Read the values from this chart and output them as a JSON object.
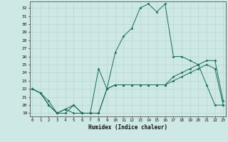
{
  "xlabel": "Humidex (Indice chaleur)",
  "background_color": "#cde8e5",
  "grid_color": "#b8d8d5",
  "line_color": "#1a6b5a",
  "x_ticks": [
    0,
    1,
    2,
    3,
    4,
    5,
    6,
    7,
    8,
    9,
    10,
    11,
    12,
    13,
    14,
    15,
    16,
    17,
    18,
    19,
    20,
    21,
    22,
    23
  ],
  "y_ticks": [
    19,
    20,
    21,
    22,
    23,
    24,
    25,
    26,
    27,
    28,
    29,
    30,
    31,
    32
  ],
  "ylim": [
    18.6,
    32.8
  ],
  "xlim": [
    -0.3,
    23.3
  ],
  "series1_x": [
    0,
    1,
    2,
    3,
    4,
    5,
    6,
    7,
    8,
    9,
    10,
    11,
    12,
    13,
    14,
    15,
    16,
    17,
    18,
    19,
    20,
    21,
    22,
    23
  ],
  "series1_y": [
    22.0,
    21.5,
    20.0,
    19.0,
    19.0,
    20.0,
    19.0,
    19.0,
    19.0,
    22.0,
    22.5,
    22.5,
    22.5,
    22.5,
    22.5,
    22.5,
    22.5,
    23.0,
    23.5,
    24.0,
    24.5,
    25.0,
    24.5,
    20.0
  ],
  "series2_x": [
    0,
    1,
    2,
    3,
    4,
    5,
    6,
    7,
    8,
    9,
    10,
    11,
    12,
    13,
    14,
    15,
    16,
    17,
    18,
    19,
    20,
    21,
    22,
    23
  ],
  "series2_y": [
    22.0,
    21.5,
    20.0,
    19.0,
    19.5,
    19.0,
    19.0,
    19.0,
    19.0,
    22.0,
    22.5,
    22.5,
    22.5,
    22.5,
    22.5,
    22.5,
    22.5,
    23.5,
    24.0,
    24.5,
    25.0,
    25.5,
    25.5,
    20.5
  ],
  "series3_x": [
    0,
    1,
    2,
    3,
    4,
    5,
    6,
    7,
    8,
    9,
    10,
    11,
    12,
    13,
    14,
    15,
    16,
    17,
    18,
    19,
    20,
    21,
    22,
    23
  ],
  "series3_y": [
    22.0,
    21.5,
    20.5,
    19.0,
    19.5,
    20.0,
    19.0,
    19.0,
    24.5,
    22.0,
    26.5,
    28.5,
    29.5,
    32.0,
    32.5,
    31.5,
    32.5,
    26.0,
    26.0,
    25.5,
    25.0,
    22.5,
    20.0,
    20.0
  ]
}
